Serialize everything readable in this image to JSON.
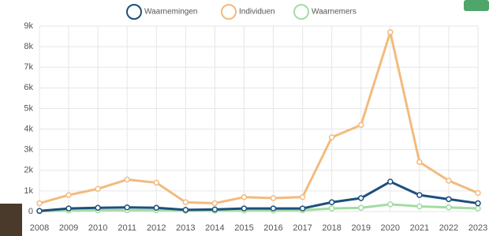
{
  "chart_data": {
    "type": "line",
    "categories": [
      "2008",
      "2009",
      "2010",
      "2011",
      "2012",
      "2013",
      "2014",
      "2015",
      "2016",
      "2017",
      "2018",
      "2019",
      "2020",
      "2021",
      "2022",
      "2023"
    ],
    "series": [
      {
        "name": "Waarnemingen",
        "color": "#1d4f7c",
        "values": [
          30,
          150,
          180,
          200,
          180,
          80,
          100,
          150,
          150,
          150,
          450,
          650,
          1450,
          800,
          600,
          400
        ]
      },
      {
        "name": "Individuen",
        "color": "#f2bb7e",
        "values": [
          400,
          800,
          1100,
          1550,
          1400,
          450,
          400,
          700,
          650,
          700,
          3600,
          4200,
          8700,
          2400,
          1500,
          900
        ]
      },
      {
        "name": "Waarnemers",
        "color": "#a3dca3",
        "values": [
          20,
          50,
          60,
          60,
          60,
          40,
          40,
          50,
          50,
          60,
          150,
          180,
          350,
          250,
          200,
          150
        ]
      }
    ],
    "ylim": [
      0,
      9000
    ],
    "yticks": [
      0,
      {
        "value": 1000,
        "label": "1k"
      },
      {
        "value": 2000,
        "label": "2k"
      },
      {
        "value": 3000,
        "label": "3k"
      },
      {
        "value": 4000,
        "label": "4k"
      },
      {
        "value": 5000,
        "label": "5k"
      },
      {
        "value": 6000,
        "label": "6k"
      },
      {
        "value": 7000,
        "label": "7k"
      },
      {
        "value": 8000,
        "label": "8k"
      },
      {
        "value": 9000,
        "label": "9k"
      }
    ],
    "grid": true,
    "legend": "top"
  }
}
